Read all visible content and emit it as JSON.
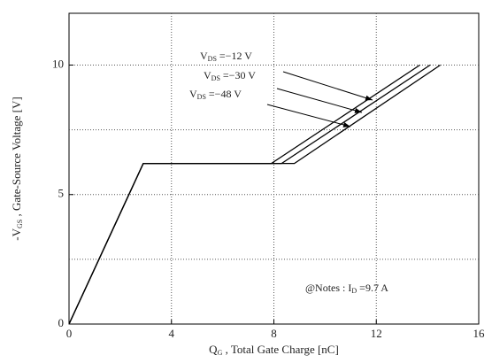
{
  "chart_data": {
    "type": "line",
    "xlabel": [
      "Q",
      "G",
      " , Total Gate Charge  [nC]"
    ],
    "ylabel": [
      "-V",
      "GS",
      " , Gate-Source Voltage  [V]"
    ],
    "xlim": [
      0,
      16
    ],
    "xticks": [
      0,
      4,
      8,
      12,
      16
    ],
    "ylim": [
      0,
      12
    ],
    "yticks": [
      0,
      5,
      10
    ],
    "xgrid": [
      4,
      8,
      12
    ],
    "ygrid": [
      2.5,
      5,
      7.5,
      10
    ],
    "grid": true,
    "series": [
      {
        "label": [
          "V",
          "DS",
          " =−12 V"
        ],
        "color": "#000000",
        "x": [
          0,
          2.9,
          7.9,
          13.7
        ],
        "y": [
          0,
          6.2,
          6.2,
          10
        ]
      },
      {
        "label": [
          "V",
          "DS",
          " =−30 V"
        ],
        "color": "#000000",
        "x": [
          0,
          2.9,
          8.3,
          14.1
        ],
        "y": [
          0,
          6.2,
          6.2,
          10
        ]
      },
      {
        "label": [
          "V",
          "DS",
          " =−48 V"
        ],
        "color": "#000000",
        "x": [
          0,
          2.9,
          8.8,
          14.5
        ],
        "y": [
          0,
          6.2,
          6.2,
          10
        ]
      }
    ],
    "annotation": [
      "@Notes : I",
      "D",
      " =9.7 A"
    ]
  }
}
